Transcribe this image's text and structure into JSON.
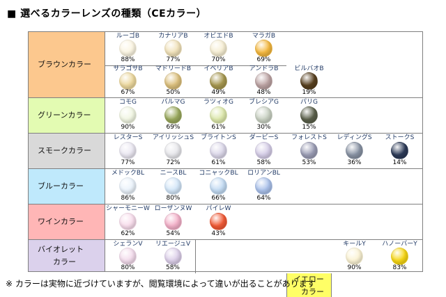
{
  "title": "■ 選べるカラーレンズの種類（CEカラー）",
  "footnote": "※ カラーは実物に近づけていますが、閲覧環境によって違いが出ることがあります",
  "border_color": "#7f7f7f",
  "table": {
    "categories": [
      {
        "label": "ブラウンカラー",
        "bg": "#fcc88e",
        "subrows": [
          [
            {
              "name": "ルーゴB",
              "pct": "88%",
              "color": "#fbf5e2",
              "col": 0
            },
            {
              "name": "カナリアB",
              "pct": "77%",
              "color": "#f1e2ba",
              "col": 1
            },
            {
              "name": "オビエドB",
              "pct": "70%",
              "color": "#f6eed3",
              "col": 2
            },
            {
              "name": "マラガB",
              "pct": "69%",
              "color": "#f4b83f",
              "col": 3
            }
          ],
          [
            {
              "name": "サラゴサB",
              "pct": "67%",
              "color": "#ecd89e",
              "col": 0
            },
            {
              "name": "マドリードB",
              "pct": "50%",
              "color": "#dcc07d",
              "col": 1
            },
            {
              "name": "イベリアB",
              "pct": "49%",
              "color": "#a6974f",
              "col": 2
            },
            {
              "name": "アンドラB",
              "pct": "48%",
              "color": "#bda4a4",
              "col": 3
            },
            {
              "name": "ビルバオB",
              "pct": "19%",
              "color": "#573f1e",
              "col": 4
            }
          ]
        ]
      },
      {
        "label": "グリーンカラー",
        "bg": "#e3fbb2",
        "subrows": [
          [
            {
              "name": "コモG",
              "pct": "90%",
              "color": "#f1f6e3",
              "col": 0
            },
            {
              "name": "パルマG",
              "pct": "69%",
              "color": "#9aa95e",
              "col": 1
            },
            {
              "name": "ラツィオG",
              "pct": "61%",
              "color": "#dde8ac",
              "col": 2
            },
            {
              "name": "ブレシアG",
              "pct": "30%",
              "color": "#c9d1c3",
              "col": 3
            },
            {
              "name": "パリG",
              "pct": "15%",
              "color": "#5b604b",
              "col": 4
            }
          ]
        ]
      },
      {
        "label": "スモークカラー",
        "bg": "#d9d9d9",
        "subrows": [
          [
            {
              "name": "レスターS",
              "pct": "77%",
              "color": "#eae7f1",
              "col": 0
            },
            {
              "name": "アイリッシュS",
              "pct": "72%",
              "color": "#e7e7eb",
              "col": 1
            },
            {
              "name": "ブライトンS",
              "pct": "61%",
              "color": "#dbd7e9",
              "col": 2
            },
            {
              "name": "ダービーS",
              "pct": "58%",
              "color": "#d5cde7",
              "col": 3
            },
            {
              "name": "フォレストS",
              "pct": "53%",
              "color": "#9a9cb4",
              "col": 4
            },
            {
              "name": "レディングS",
              "pct": "36%",
              "color": "#8993a4",
              "col": 5
            },
            {
              "name": "ストークS",
              "pct": "14%",
              "color": "#2c3a57",
              "col": 6
            }
          ]
        ]
      },
      {
        "label": "ブルーカラー",
        "bg": "#bfe9fc",
        "subrows": [
          [
            {
              "name": "メドックBL",
              "pct": "86%",
              "color": "#ebf3fb",
              "col": 0
            },
            {
              "name": "ニースBL",
              "pct": "80%",
              "color": "#d3e6f8",
              "col": 1
            },
            {
              "name": "コニャックBL",
              "pct": "66%",
              "color": "#c3dbf3",
              "col": 2
            },
            {
              "name": "ロリアンBL",
              "pct": "64%",
              "color": "#aac1ea",
              "col": 3
            }
          ]
        ]
      },
      {
        "label": "ワインカラー",
        "bg": "#ffb6b6",
        "subrows": [
          [
            {
              "name": "シャーモニーW",
              "pct": "62%",
              "color": "#f8ddec",
              "col": 0
            },
            {
              "name": "ローザンヌW",
              "pct": "54%",
              "color": "#f3b1c9",
              "col": 1
            },
            {
              "name": "パイレW",
              "pct": "43%",
              "color": "#f15a36",
              "col": 2
            }
          ]
        ]
      },
      {
        "label": "バイオレット\n　　カラー",
        "bg": "#dbd1ec",
        "inner_label": {
          "text": "イエロー\n　カラー",
          "bg": "#ffff66",
          "col": 4
        },
        "subrows": [
          [
            {
              "name": "シェランV",
              "pct": "80%",
              "color": "#f3dcec",
              "col": 0
            },
            {
              "name": "リエージュV",
              "pct": "58%",
              "color": "#dccfe9",
              "col": 1
            },
            {
              "name": "キールY",
              "pct": "90%",
              "color": "#fbf3d4",
              "col": 5
            },
            {
              "name": "ハノーバーY",
              "pct": "83%",
              "color": "#f6d616",
              "col": 6
            }
          ]
        ]
      }
    ]
  }
}
